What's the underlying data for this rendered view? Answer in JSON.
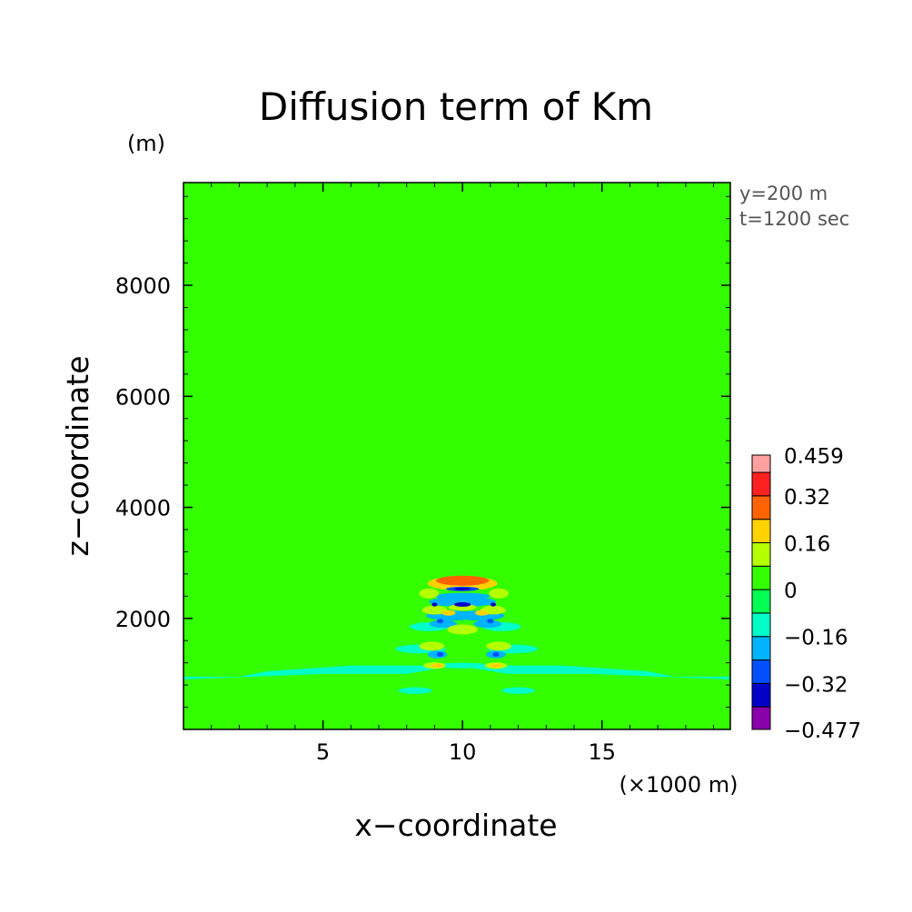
{
  "chart_data": {
    "type": "heatmap",
    "title": "Diffusion term of Km",
    "xlabel": "x−coordinate",
    "ylabel": "z−coordinate",
    "x_unit": "(×1000 m)",
    "y_unit": "(m)",
    "annotations": [
      "y=200 m",
      "t=1200 sec"
    ],
    "xlim": [
      0,
      19.6
    ],
    "ylim": [
      0,
      9850
    ],
    "x_ticks": [
      5,
      10,
      15
    ],
    "y_ticks": [
      2000,
      4000,
      6000,
      8000
    ],
    "x_tick_labels": [
      "5",
      "10",
      "15"
    ],
    "y_tick_labels": [
      "2000",
      "4000",
      "6000",
      "8000"
    ],
    "background_value": 0.03,
    "background_color": "#33ff00",
    "colorbar": {
      "levels": [
        -0.477,
        -0.4,
        -0.32,
        -0.24,
        -0.16,
        -0.08,
        0,
        0.08,
        0.16,
        0.24,
        0.32,
        0.4,
        0.459
      ],
      "colors": [
        "#8800aa",
        "#0000c8",
        "#0050ff",
        "#00b4ff",
        "#00ffc8",
        "#00ff50",
        "#33ff00",
        "#b4ff00",
        "#ffd200",
        "#ff6400",
        "#ff2020",
        "#ffa0a0"
      ],
      "labels": [
        "0.459",
        "0.32",
        "0.16",
        "0",
        "−0.16",
        "−0.32",
        "−0.477"
      ],
      "label_values": [
        0.459,
        0.32,
        0.16,
        0,
        -0.16,
        -0.32,
        -0.477
      ]
    },
    "features": [
      {
        "shape": "polygon",
        "value": -0.1,
        "points": [
          [
            0,
            950
          ],
          [
            2,
            950
          ],
          [
            3,
            1050
          ],
          [
            6,
            1150
          ],
          [
            9,
            1150
          ],
          [
            9.2,
            1100
          ],
          [
            8,
            1000
          ],
          [
            5,
            1000
          ],
          [
            2.5,
            950
          ],
          [
            0,
            900
          ]
        ]
      },
      {
        "shape": "polygon",
        "value": -0.1,
        "points": [
          [
            19.6,
            950
          ],
          [
            17.6,
            950
          ],
          [
            16.6,
            1050
          ],
          [
            13.6,
            1150
          ],
          [
            10.6,
            1150
          ],
          [
            10.4,
            1100
          ],
          [
            11.6,
            1000
          ],
          [
            14.6,
            1000
          ],
          [
            17.1,
            950
          ],
          [
            19.6,
            900
          ]
        ]
      },
      {
        "shape": "ellipse",
        "value": -0.1,
        "cx": 8.3,
        "cy": 700,
        "rx": 0.6,
        "ry": 60
      },
      {
        "shape": "ellipse",
        "value": -0.1,
        "cx": 12.0,
        "cy": 700,
        "rx": 0.6,
        "ry": 60
      },
      {
        "shape": "ellipse",
        "value": -0.1,
        "cx": 8.5,
        "cy": 1450,
        "rx": 0.9,
        "ry": 80
      },
      {
        "shape": "ellipse",
        "value": -0.1,
        "cx": 11.8,
        "cy": 1450,
        "rx": 0.9,
        "ry": 80
      },
      {
        "shape": "ellipse",
        "value": -0.1,
        "cx": 8.8,
        "cy": 1850,
        "rx": 0.7,
        "ry": 80
      },
      {
        "shape": "ellipse",
        "value": -0.1,
        "cx": 11.4,
        "cy": 1850,
        "rx": 0.7,
        "ry": 80
      },
      {
        "shape": "ellipse",
        "value": -0.1,
        "cx": 10.0,
        "cy": 1150,
        "rx": 1.0,
        "ry": 50
      },
      {
        "shape": "ellipse",
        "value": -0.2,
        "cx": 9.6,
        "cy": 2050,
        "rx": 0.9,
        "ry": 90
      },
      {
        "shape": "ellipse",
        "value": -0.2,
        "cx": 10.6,
        "cy": 2050,
        "rx": 0.9,
        "ry": 90
      },
      {
        "shape": "ellipse",
        "value": -0.2,
        "cx": 9.3,
        "cy": 1900,
        "rx": 0.5,
        "ry": 70
      },
      {
        "shape": "ellipse",
        "value": -0.2,
        "cx": 10.9,
        "cy": 1900,
        "rx": 0.5,
        "ry": 70
      },
      {
        "shape": "ellipse",
        "value": -0.2,
        "cx": 9.1,
        "cy": 1350,
        "rx": 0.35,
        "ry": 70
      },
      {
        "shape": "ellipse",
        "value": -0.2,
        "cx": 11.2,
        "cy": 1350,
        "rx": 0.35,
        "ry": 70
      },
      {
        "shape": "ellipse",
        "value": -0.2,
        "cx": 10.0,
        "cy": 2300,
        "rx": 1.2,
        "ry": 90
      },
      {
        "shape": "ellipse",
        "value": -0.2,
        "cx": 10.0,
        "cy": 2400,
        "rx": 1.0,
        "ry": 60
      },
      {
        "shape": "ellipse",
        "value": 0.1,
        "cx": 10.0,
        "cy": 1800,
        "rx": 0.55,
        "ry": 90
      },
      {
        "shape": "ellipse",
        "value": 0.1,
        "cx": 8.9,
        "cy": 1500,
        "rx": 0.45,
        "ry": 80
      },
      {
        "shape": "ellipse",
        "value": 0.1,
        "cx": 11.3,
        "cy": 1500,
        "rx": 0.45,
        "ry": 80
      },
      {
        "shape": "ellipse",
        "value": 0.1,
        "cx": 9.0,
        "cy": 2150,
        "rx": 0.45,
        "ry": 80
      },
      {
        "shape": "ellipse",
        "value": 0.1,
        "cx": 11.1,
        "cy": 2150,
        "rx": 0.45,
        "ry": 80
      },
      {
        "shape": "ellipse",
        "value": 0.1,
        "cx": 8.8,
        "cy": 2450,
        "rx": 0.35,
        "ry": 90
      },
      {
        "shape": "ellipse",
        "value": 0.1,
        "cx": 11.3,
        "cy": 2450,
        "rx": 0.35,
        "ry": 90
      },
      {
        "shape": "ellipse",
        "value": 0.1,
        "cx": 10.0,
        "cy": 2200,
        "rx": 0.5,
        "ry": 60
      },
      {
        "shape": "ellipse",
        "value": 0.1,
        "cx": 9.0,
        "cy": 1150,
        "rx": 0.4,
        "ry": 60
      },
      {
        "shape": "ellipse",
        "value": 0.1,
        "cx": 11.2,
        "cy": 1150,
        "rx": 0.4,
        "ry": 60
      },
      {
        "shape": "ellipse",
        "value": 0.2,
        "cx": 9.1,
        "cy": 1150,
        "rx": 0.22,
        "ry": 40
      },
      {
        "shape": "ellipse",
        "value": 0.2,
        "cx": 11.2,
        "cy": 1150,
        "rx": 0.22,
        "ry": 40
      },
      {
        "shape": "ellipse",
        "value": 0.2,
        "cx": 9.5,
        "cy": 2100,
        "rx": 0.25,
        "ry": 50
      },
      {
        "shape": "ellipse",
        "value": 0.2,
        "cx": 10.7,
        "cy": 2100,
        "rx": 0.25,
        "ry": 50
      },
      {
        "shape": "ellipse",
        "value": 0.2,
        "cx": 10.0,
        "cy": 2630,
        "rx": 1.25,
        "ry": 130
      },
      {
        "shape": "ellipse",
        "value": 0.3,
        "cx": 10.0,
        "cy": 2680,
        "rx": 0.95,
        "ry": 90
      },
      {
        "shape": "ellipse",
        "value": -0.3,
        "cx": 10.0,
        "cy": 2530,
        "rx": 0.6,
        "ry": 40
      },
      {
        "shape": "ellipse",
        "value": -0.35,
        "cx": 10.0,
        "cy": 2250,
        "rx": 0.3,
        "ry": 40
      },
      {
        "shape": "ellipse",
        "value": -0.4,
        "cx": 10.0,
        "cy": 2530,
        "rx": 0.3,
        "ry": 25
      },
      {
        "shape": "ellipse",
        "value": -0.3,
        "cx": 9.2,
        "cy": 1950,
        "rx": 0.12,
        "ry": 40
      },
      {
        "shape": "ellipse",
        "value": -0.3,
        "cx": 11.0,
        "cy": 1950,
        "rx": 0.12,
        "ry": 40
      },
      {
        "shape": "ellipse",
        "value": -0.3,
        "cx": 9.2,
        "cy": 1350,
        "rx": 0.12,
        "ry": 40
      },
      {
        "shape": "ellipse",
        "value": -0.3,
        "cx": 11.2,
        "cy": 1350,
        "rx": 0.12,
        "ry": 40
      },
      {
        "shape": "ellipse",
        "value": -0.35,
        "cx": 9.0,
        "cy": 2250,
        "rx": 0.1,
        "ry": 35
      },
      {
        "shape": "ellipse",
        "value": -0.35,
        "cx": 11.1,
        "cy": 2250,
        "rx": 0.1,
        "ry": 35
      }
    ]
  }
}
